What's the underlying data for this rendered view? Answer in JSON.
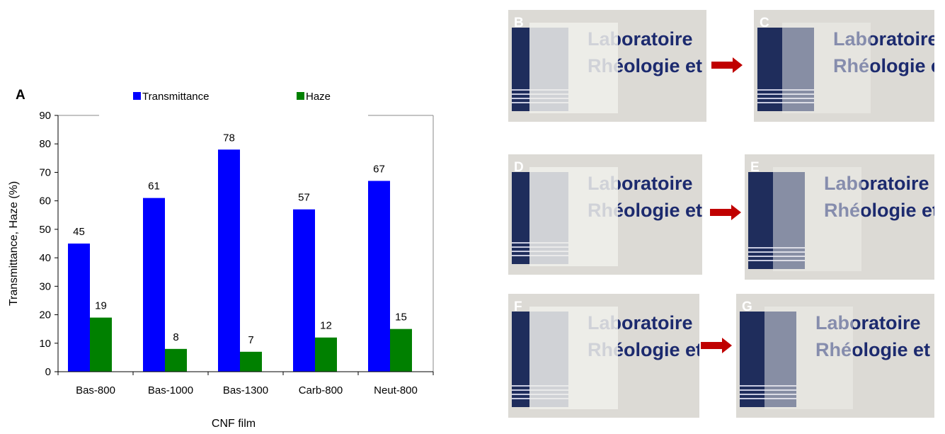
{
  "chart_data": {
    "type": "bar",
    "panel_label": "A",
    "categories": [
      "Bas-800",
      "Bas-1000",
      "Bas-1300",
      "Carb-800",
      "Neut-800"
    ],
    "series": [
      {
        "name": "Transmittance",
        "color": "#0000ff",
        "values": [
          45,
          61,
          78,
          57,
          67
        ]
      },
      {
        "name": "Haze",
        "color": "#008000",
        "values": [
          19,
          8,
          7,
          12,
          15
        ]
      }
    ],
    "ylim": [
      0,
      90
    ],
    "yticks": [
      0,
      10,
      20,
      30,
      40,
      50,
      60,
      70,
      80,
      90
    ],
    "xlabel": "CNF film",
    "ylabel": "Transmittance, Haze (%)"
  },
  "photos": [
    {
      "label": "B",
      "lines": [
        "Laboratoire",
        "Rhéologie et"
      ]
    },
    {
      "label": "C",
      "lines": [
        "Laboratoire",
        "Rhéologie et"
      ]
    },
    {
      "label": "D",
      "lines": [
        "Laboratoire",
        "Rhéologie et"
      ]
    },
    {
      "label": "E",
      "lines": [
        "Laboratoire",
        "Rhéologie et"
      ]
    },
    {
      "label": "F",
      "lines": [
        "Laboratoire",
        "Rhéologie et"
      ]
    },
    {
      "label": "G",
      "lines": [
        "Laboratoire",
        "Rhéologie et"
      ]
    }
  ]
}
